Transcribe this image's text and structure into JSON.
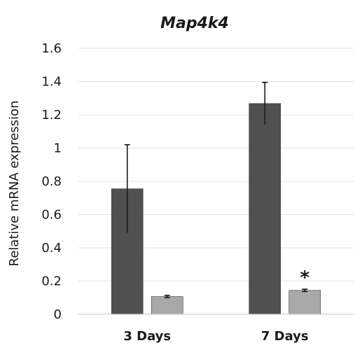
{
  "chart_data": {
    "type": "bar",
    "title": "Map4k4",
    "xlabel": "",
    "ylabel": "Relative mRNA expression",
    "ylim": [
      0,
      1.6
    ],
    "yticks": [
      "0",
      "0.2",
      "0.4",
      "0.6",
      "0.8",
      "1",
      "1.2",
      "1.4",
      "1.6"
    ],
    "ytick_values": [
      0,
      0.2,
      0.4,
      0.6,
      0.8,
      1.0,
      1.2,
      1.4,
      1.6
    ],
    "grid": true,
    "legend": "none",
    "categories": [
      "3 Days",
      "7 Days"
    ],
    "series": [
      {
        "color": "#505050",
        "values": [
          0.755,
          1.268
        ],
        "errors": [
          0.265,
          0.127
        ]
      },
      {
        "color": "#a8a8a8",
        "values": [
          0.107,
          0.144
        ],
        "errors": [
          0.007,
          0.007
        ]
      }
    ],
    "annotations": [
      {
        "text": "*",
        "category_index": 1,
        "series_index": 1
      }
    ]
  }
}
